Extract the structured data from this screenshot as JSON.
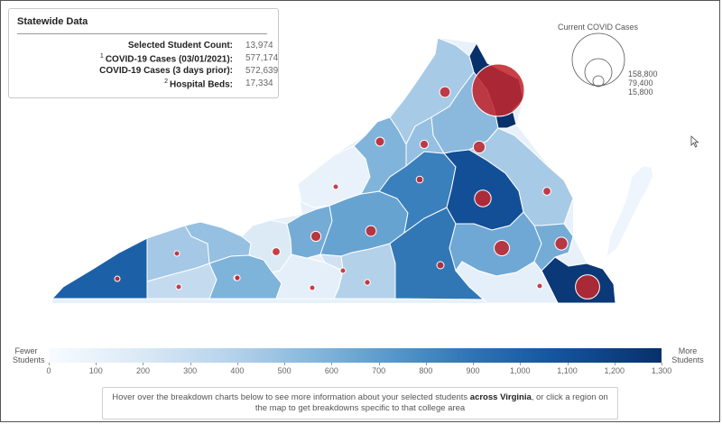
{
  "stats": {
    "title": "Statewide Data",
    "rows": [
      {
        "sup": "",
        "label": "Selected Student Count:",
        "value": "13,974"
      },
      {
        "sup": "1",
        "label": "COVID-19 Cases (03/01/2021):",
        "value": "577,174"
      },
      {
        "sup": "",
        "label": "COVID-19 Cases (3 days prior):",
        "value": "572,639"
      },
      {
        "sup": "2",
        "label": "Hospital Beds:",
        "value": "17,334"
      }
    ]
  },
  "size_legend": {
    "title": "Current COVID Cases",
    "values": [
      "158,800",
      "79,400",
      "15,800"
    ]
  },
  "color_legend": {
    "left_label": "Fewer\nStudents",
    "right_label": "More\nStudents",
    "ticks": [
      "0",
      "100",
      "200",
      "300",
      "400",
      "500",
      "600",
      "700",
      "800",
      "900",
      "1,000",
      "1,100",
      "1,200",
      "1,300"
    ],
    "min": 0,
    "max": 1300
  },
  "info": {
    "before": "Hover over the breakdown charts below to see more information about your selected students ",
    "bold": "across Virginia",
    "after": ", or click a region on the map to get breakdowns specific to that college area"
  },
  "colors": {
    "bubble": "#c0272d",
    "scale_low": "#f7fbff",
    "scale_high": "#08306b"
  },
  "map": {
    "regions": [
      {
        "name": "lee",
        "students": 1050,
        "cases": 1700
      },
      {
        "name": "wise",
        "students": 430,
        "cases": 1400
      },
      {
        "name": "washington",
        "students": 300,
        "cases": 1700
      },
      {
        "name": "tazewell",
        "students": 480,
        "cases": 1700
      },
      {
        "name": "wytheville",
        "students": 560,
        "cases": 1800
      },
      {
        "name": "new-river-upper",
        "students": 180,
        "cases": 3700
      },
      {
        "name": "new-river-lower",
        "students": 120,
        "cases": 1500
      },
      {
        "name": "alleghany",
        "students": 90,
        "cases": 900
      },
      {
        "name": "roanoke",
        "students": 600,
        "cases": 6000
      },
      {
        "name": "lynchburg",
        "students": 650,
        "cases": 6500
      },
      {
        "name": "danville",
        "students": 380,
        "cases": 1900
      },
      {
        "name": "patrick-henry",
        "students": 240,
        "cases": 1600
      },
      {
        "name": "southside",
        "students": 900,
        "cases": 3000
      },
      {
        "name": "central-va",
        "students": 850,
        "cases": 2700
      },
      {
        "name": "shenandoah-valley",
        "students": 550,
        "cases": 4700
      },
      {
        "name": "lord-fairfax",
        "students": 420,
        "cases": 6500
      },
      {
        "name": "germanna",
        "students": 520,
        "cases": 8200
      },
      {
        "name": "piedmont",
        "students": 480,
        "cases": 4000
      },
      {
        "name": "richmond",
        "students": 1150,
        "cases": 16000
      },
      {
        "name": "john-tyler",
        "students": 620,
        "cases": 13500
      },
      {
        "name": "rappahannock",
        "students": 420,
        "cases": 3700
      },
      {
        "name": "northern-va",
        "students": 1300,
        "cases": 158800
      },
      {
        "name": "tidewater",
        "students": 1260,
        "cases": 34000
      },
      {
        "name": "paul-d-camp",
        "students": 120,
        "cases": 1600
      },
      {
        "name": "thomas-nelson",
        "students": 600,
        "cases": 9600
      },
      {
        "name": "eastern-shore",
        "students": 60,
        "cases": 0
      }
    ]
  }
}
